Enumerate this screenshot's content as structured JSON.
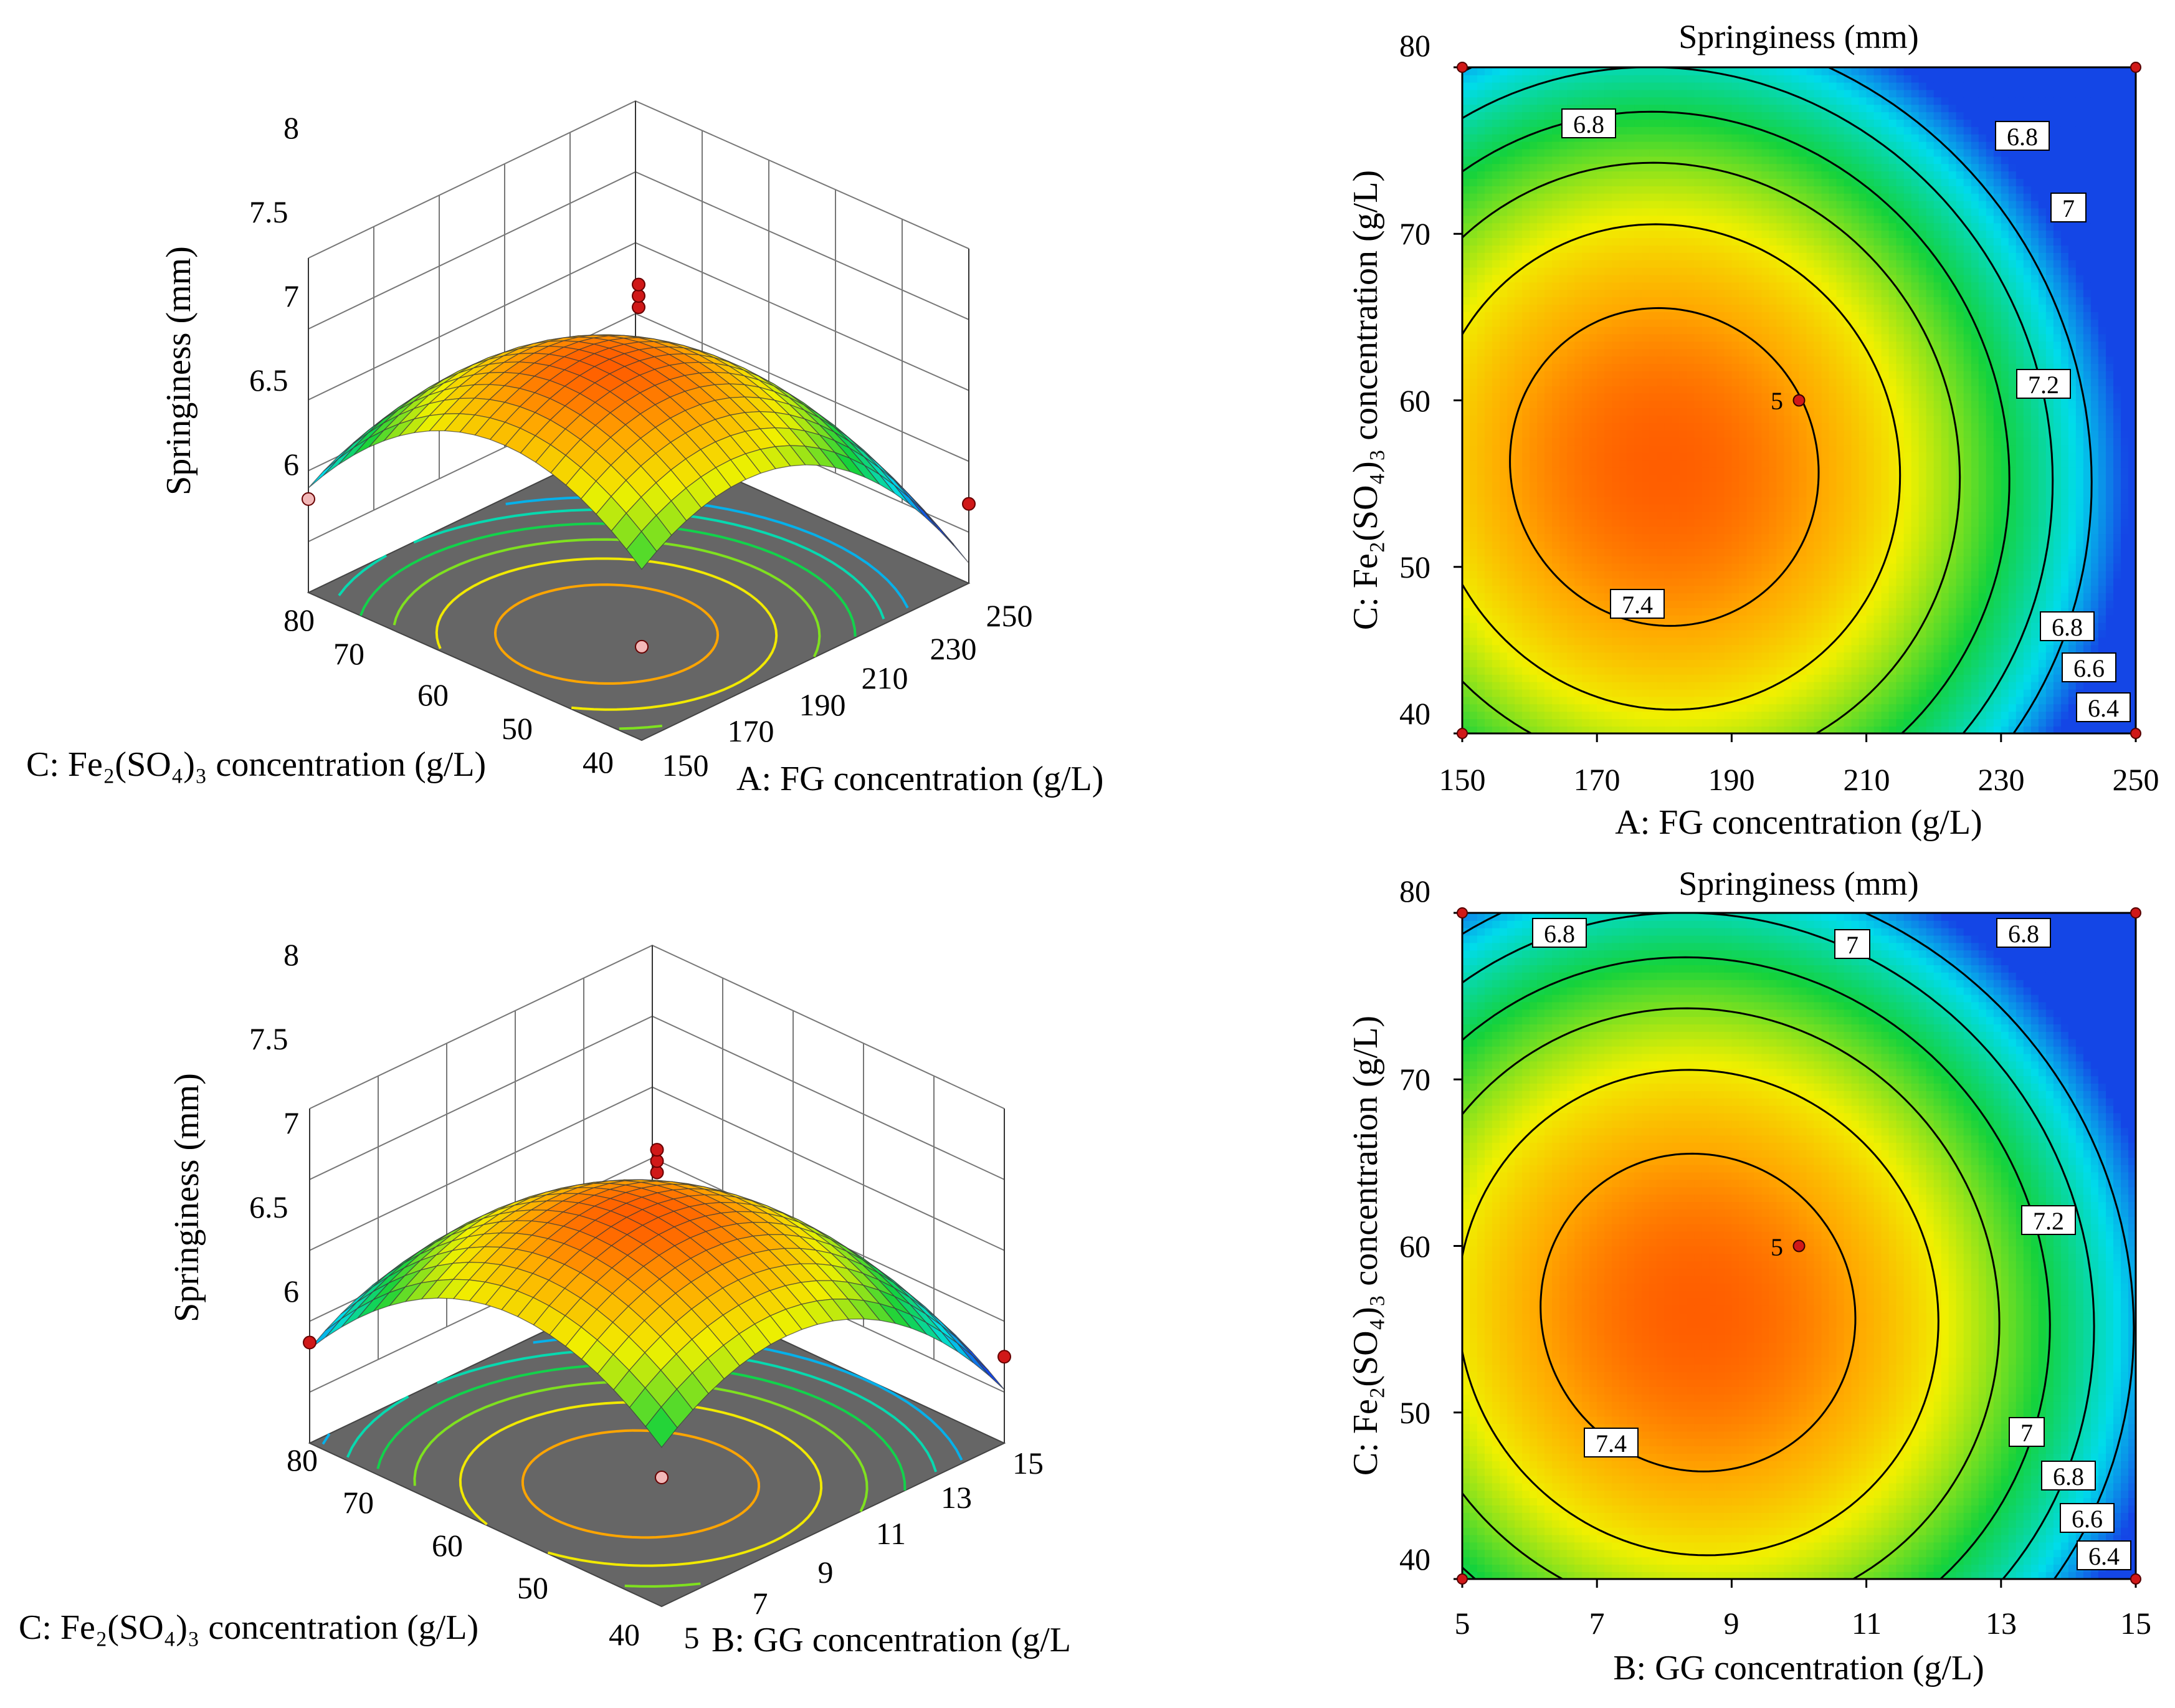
{
  "chart_data": [
    {
      "type": "surface",
      "title": "",
      "zlabel": "Springiness (mm)",
      "xlabel": "A: FG concentration (g/L)",
      "ylabel": "C: Fe₂(SO₄)₃ concentration (g/L)",
      "x_ticks": [
        "150",
        "170",
        "190",
        "210",
        "230",
        "250"
      ],
      "y_ticks": [
        "40",
        "50",
        "60",
        "70",
        "80"
      ],
      "z_ticks": [
        "6",
        "6.5",
        "7",
        "7.5",
        "8"
      ],
      "xlim": [
        150,
        250
      ],
      "ylim": [
        40,
        80
      ],
      "zlim": [
        6,
        8
      ],
      "model": {
        "x0": 180,
        "y0": 56,
        "zmax": 7.55,
        "ax": 1.3,
        "ay": 1.2
      },
      "design_points": [
        {
          "x": 200,
          "y": 60,
          "z": 7.62
        },
        {
          "x": 200,
          "y": 60,
          "z": 7.7
        },
        {
          "x": 200,
          "y": 60,
          "z": 7.78
        },
        {
          "x": 150,
          "y": 80,
          "z": 6.3
        },
        {
          "x": 150,
          "y": 40,
          "z": 6.3
        },
        {
          "x": 250,
          "y": 40,
          "z": 6.2
        }
      ]
    },
    {
      "type": "contour",
      "title": "Springiness (mm)",
      "xlabel": "A: FG concentration (g/L)",
      "ylabel": "C: Fe₂(SO₄)₃ concentration (g/L)",
      "x_ticks": [
        "150",
        "170",
        "190",
        "210",
        "230",
        "250"
      ],
      "y_ticks": [
        "40",
        "50",
        "60",
        "70",
        "80"
      ],
      "xlim": [
        150,
        250
      ],
      "ylim": [
        40,
        80
      ],
      "levels": [
        6.4,
        6.6,
        6.8,
        7,
        7.2,
        7.4
      ],
      "contour_labels": [
        "6.8",
        "6.8",
        "7",
        "7.2",
        "7.4",
        "6.8",
        "6.6",
        "6.4"
      ],
      "center_point": {
        "x": 200,
        "y": 60,
        "label": "5"
      },
      "corner_points": [
        [
          150,
          80
        ],
        [
          250,
          80
        ],
        [
          150,
          40
        ],
        [
          250,
          40
        ]
      ]
    },
    {
      "type": "surface",
      "title": "",
      "zlabel": "Springiness (mm)",
      "xlabel": "B:  GG concentration (g/L",
      "ylabel": "C: Fe₂(SO₄)₃ concentration (g/L)",
      "x_ticks": [
        "5",
        "7",
        "9",
        "11",
        "13",
        "15"
      ],
      "y_ticks": [
        "40",
        "50",
        "60",
        "70",
        "80"
      ],
      "z_ticks": [
        "6",
        "6.5",
        "7",
        "7.5",
        "8"
      ],
      "xlim": [
        5,
        15
      ],
      "ylim": [
        40,
        80
      ],
      "zlim": [
        6,
        8
      ],
      "model": {
        "x0": 8.5,
        "y0": 56,
        "zmax": 7.55,
        "ax": 1.25,
        "ay": 1.2
      },
      "design_points": [
        {
          "x": 10,
          "y": 60,
          "z": 7.55
        },
        {
          "x": 10,
          "y": 60,
          "z": 7.63
        },
        {
          "x": 10,
          "y": 60,
          "z": 7.71
        },
        {
          "x": 5,
          "y": 80,
          "z": 6.35
        },
        {
          "x": 5,
          "y": 40,
          "z": 6.55
        },
        {
          "x": 15,
          "y": 40,
          "z": 6.25
        }
      ]
    },
    {
      "type": "contour",
      "title": "Springiness (mm)",
      "xlabel": "B: GG concentration (g/L)",
      "ylabel": "C: Fe₂(SO₄)₃ concentration (g/L)",
      "x_ticks": [
        "5",
        "7",
        "9",
        "11",
        "13",
        "15"
      ],
      "y_ticks": [
        "40",
        "50",
        "60",
        "70",
        "80"
      ],
      "xlim": [
        5,
        15
      ],
      "ylim": [
        40,
        80
      ],
      "levels": [
        6.4,
        6.6,
        6.8,
        7,
        7.2,
        7.4
      ],
      "contour_labels": [
        "6.8",
        "7",
        "6.8",
        "7.2",
        "7.4",
        "7",
        "6.8",
        "6.6",
        "6.4"
      ],
      "center_point": {
        "x": 10,
        "y": 60,
        "label": "5"
      },
      "corner_points": [
        [
          5,
          80
        ],
        [
          15,
          80
        ],
        [
          5,
          40
        ],
        [
          15,
          40
        ]
      ]
    }
  ]
}
